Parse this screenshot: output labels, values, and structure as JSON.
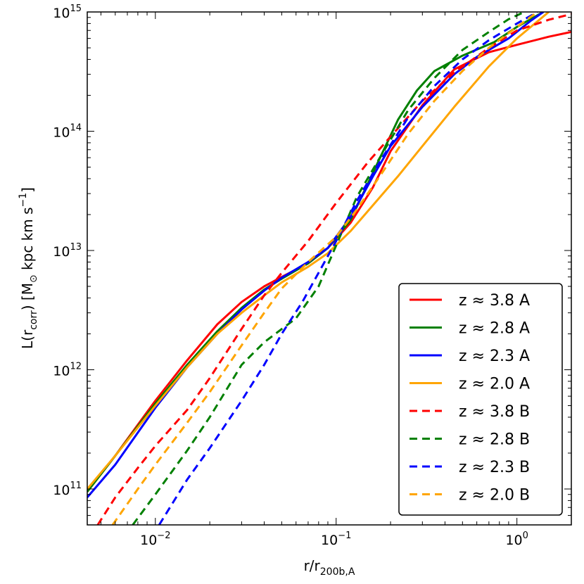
{
  "chart_data": {
    "type": "line",
    "title": "",
    "xscale": "log",
    "yscale": "log",
    "xlim": [
      0.0042,
      2.0
    ],
    "ylim": [
      50000000000.0,
      1000000000000000.0
    ],
    "xlabel": {
      "main": "r/r",
      "sub": "200b,A"
    },
    "ylabel": {
      "p1": "L(r",
      "sub1": "corr",
      "p2": ") [M",
      "sub2": "⊙",
      "p3": " kpc km s",
      "sup": "−1",
      "p4": "]"
    },
    "x_ticks": [
      {
        "value": 0.01,
        "base": "10",
        "exp": "-2"
      },
      {
        "value": 0.1,
        "base": "10",
        "exp": "-1"
      },
      {
        "value": 1.0,
        "base": "10",
        "exp": "0"
      }
    ],
    "y_ticks": [
      {
        "value": 100000000000.0,
        "base": "10",
        "exp": "11"
      },
      {
        "value": 1000000000000.0,
        "base": "10",
        "exp": "12"
      },
      {
        "value": 10000000000000.0,
        "base": "10",
        "exp": "13"
      },
      {
        "value": 100000000000000.0,
        "base": "10",
        "exp": "14"
      },
      {
        "value": 1000000000000000.0,
        "base": "10",
        "exp": "15"
      }
    ],
    "grid": false,
    "legend_position": "lower-right",
    "series": [
      {
        "name": "z ≈ 3.8 A",
        "color": "#ff0000",
        "dash": "solid",
        "x": [
          0.0042,
          0.006,
          0.01,
          0.015,
          0.022,
          0.03,
          0.04,
          0.05,
          0.07,
          0.09,
          0.12,
          0.16,
          0.2,
          0.3,
          0.45,
          0.7,
          1.0,
          1.5,
          2.0
        ],
        "y": [
          95000000000.0,
          190000000000.0,
          550000000000.0,
          1200000000000.0,
          2400000000000.0,
          3700000000000.0,
          5000000000000.0,
          6000000000000.0,
          7800000000000.0,
          10500000000000.0,
          17000000000000.0,
          34000000000000.0,
          68000000000000.0,
          165000000000000.0,
          330000000000000.0,
          460000000000000.0,
          530000000000000.0,
          620000000000000.0,
          680000000000000.0
        ]
      },
      {
        "name": "z ≈ 2.8 A",
        "color": "#008000",
        "dash": "solid",
        "x": [
          0.0042,
          0.006,
          0.01,
          0.015,
          0.022,
          0.03,
          0.04,
          0.05,
          0.07,
          0.09,
          0.12,
          0.16,
          0.22,
          0.28,
          0.35,
          0.5,
          0.75,
          1.0,
          1.4
        ],
        "y": [
          95000000000.0,
          190000000000.0,
          520000000000.0,
          1100000000000.0,
          2100000000000.0,
          3300000000000.0,
          4700000000000.0,
          5800000000000.0,
          7800000000000.0,
          10500000000000.0,
          18000000000000.0,
          45000000000000.0,
          125000000000000.0,
          220000000000000.0,
          320000000000000.0,
          430000000000000.0,
          560000000000000.0,
          750000000000000.0,
          1000000000000000.0
        ]
      },
      {
        "name": "z ≈ 2.3 A",
        "color": "#0000ff",
        "dash": "solid",
        "x": [
          0.0042,
          0.006,
          0.01,
          0.015,
          0.022,
          0.03,
          0.04,
          0.05,
          0.07,
          0.09,
          0.12,
          0.16,
          0.2,
          0.3,
          0.45,
          0.6,
          0.9,
          1.2,
          1.4
        ],
        "y": [
          85000000000.0,
          160000000000.0,
          480000000000.0,
          1050000000000.0,
          2000000000000.0,
          3200000000000.0,
          4600000000000.0,
          5900000000000.0,
          8000000000000.0,
          10500000000000.0,
          19000000000000.0,
          42000000000000.0,
          75000000000000.0,
          160000000000000.0,
          300000000000000.0,
          420000000000000.0,
          600000000000000.0,
          850000000000000.0,
          1000000000000000.0
        ]
      },
      {
        "name": "z ≈ 2.0 A",
        "color": "#ffa500",
        "dash": "solid",
        "x": [
          0.0042,
          0.006,
          0.01,
          0.015,
          0.022,
          0.03,
          0.04,
          0.05,
          0.07,
          0.09,
          0.12,
          0.16,
          0.22,
          0.3,
          0.45,
          0.7,
          1.0,
          1.5
        ],
        "y": [
          100000000000.0,
          190000000000.0,
          500000000000.0,
          1050000000000.0,
          2000000000000.0,
          3000000000000.0,
          4200000000000.0,
          5400000000000.0,
          7300000000000.0,
          9500000000000.0,
          14500000000000.0,
          24000000000000.0,
          42000000000000.0,
          75000000000000.0,
          160000000000000.0,
          350000000000000.0,
          600000000000000.0,
          1000000000000000.0
        ]
      },
      {
        "name": "z ≈ 3.8 B",
        "color": "#ff0000",
        "dash": "dashed",
        "x": [
          0.0048,
          0.006,
          0.008,
          0.01,
          0.015,
          0.02,
          0.03,
          0.04,
          0.05,
          0.07,
          0.1,
          0.15,
          0.2,
          0.3,
          0.45,
          0.7,
          1.0,
          1.5,
          2.0
        ],
        "y": [
          50000000000.0,
          85000000000.0,
          150000000000.0,
          230000000000.0,
          460000000000.0,
          850000000000.0,
          2200000000000.0,
          4200000000000.0,
          6500000000000.0,
          12000000000000.0,
          25000000000000.0,
          55000000000000.0,
          90000000000000.0,
          180000000000000.0,
          310000000000000.0,
          500000000000000.0,
          700000000000000.0,
          860000000000000.0,
          960000000000000.0
        ]
      },
      {
        "name": "z ≈ 2.8 B",
        "color": "#008000",
        "dash": "dashed",
        "x": [
          0.0075,
          0.01,
          0.015,
          0.02,
          0.03,
          0.04,
          0.06,
          0.08,
          0.1,
          0.13,
          0.18,
          0.25,
          0.35,
          0.5,
          0.7,
          0.9,
          1.1
        ],
        "y": [
          50000000000.0,
          90000000000.0,
          210000000000.0,
          400000000000.0,
          1100000000000.0,
          1700000000000.0,
          2700000000000.0,
          5000000000000.0,
          11000000000000.0,
          28000000000000.0,
          65000000000000.0,
          150000000000000.0,
          280000000000000.0,
          480000000000000.0,
          680000000000000.0,
          870000000000000.0,
          1000000000000000.0
        ]
      },
      {
        "name": "z ≈ 2.3 B",
        "color": "#0000ff",
        "dash": "dashed",
        "x": [
          0.0105,
          0.015,
          0.02,
          0.03,
          0.04,
          0.05,
          0.065,
          0.08,
          0.1,
          0.13,
          0.18,
          0.25,
          0.35,
          0.5,
          0.7,
          1.0,
          1.3
        ],
        "y": [
          50000000000.0,
          120000000000.0,
          220000000000.0,
          550000000000.0,
          1100000000000.0,
          2000000000000.0,
          3700000000000.0,
          6500000000000.0,
          12000000000000.0,
          26000000000000.0,
          60000000000000.0,
          130000000000000.0,
          240000000000000.0,
          400000000000000.0,
          580000000000000.0,
          800000000000000.0,
          1000000000000000.0
        ]
      },
      {
        "name": "z ≈ 2.0 B",
        "color": "#ffa500",
        "dash": "dashed",
        "x": [
          0.0058,
          0.008,
          0.01,
          0.015,
          0.02,
          0.03,
          0.04,
          0.05,
          0.07,
          0.1,
          0.13,
          0.18,
          0.25,
          0.35,
          0.5,
          0.7,
          1.0,
          1.3
        ],
        "y": [
          50000000000.0,
          100000000000.0,
          160000000000.0,
          360000000000.0,
          650000000000.0,
          1600000000000.0,
          3000000000000.0,
          4800000000000.0,
          8000000000000.0,
          13000000000000.0,
          22000000000000.0,
          45000000000000.0,
          95000000000000.0,
          180000000000000.0,
          320000000000000.0,
          500000000000000.0,
          750000000000000.0,
          1000000000000000.0
        ]
      }
    ]
  }
}
